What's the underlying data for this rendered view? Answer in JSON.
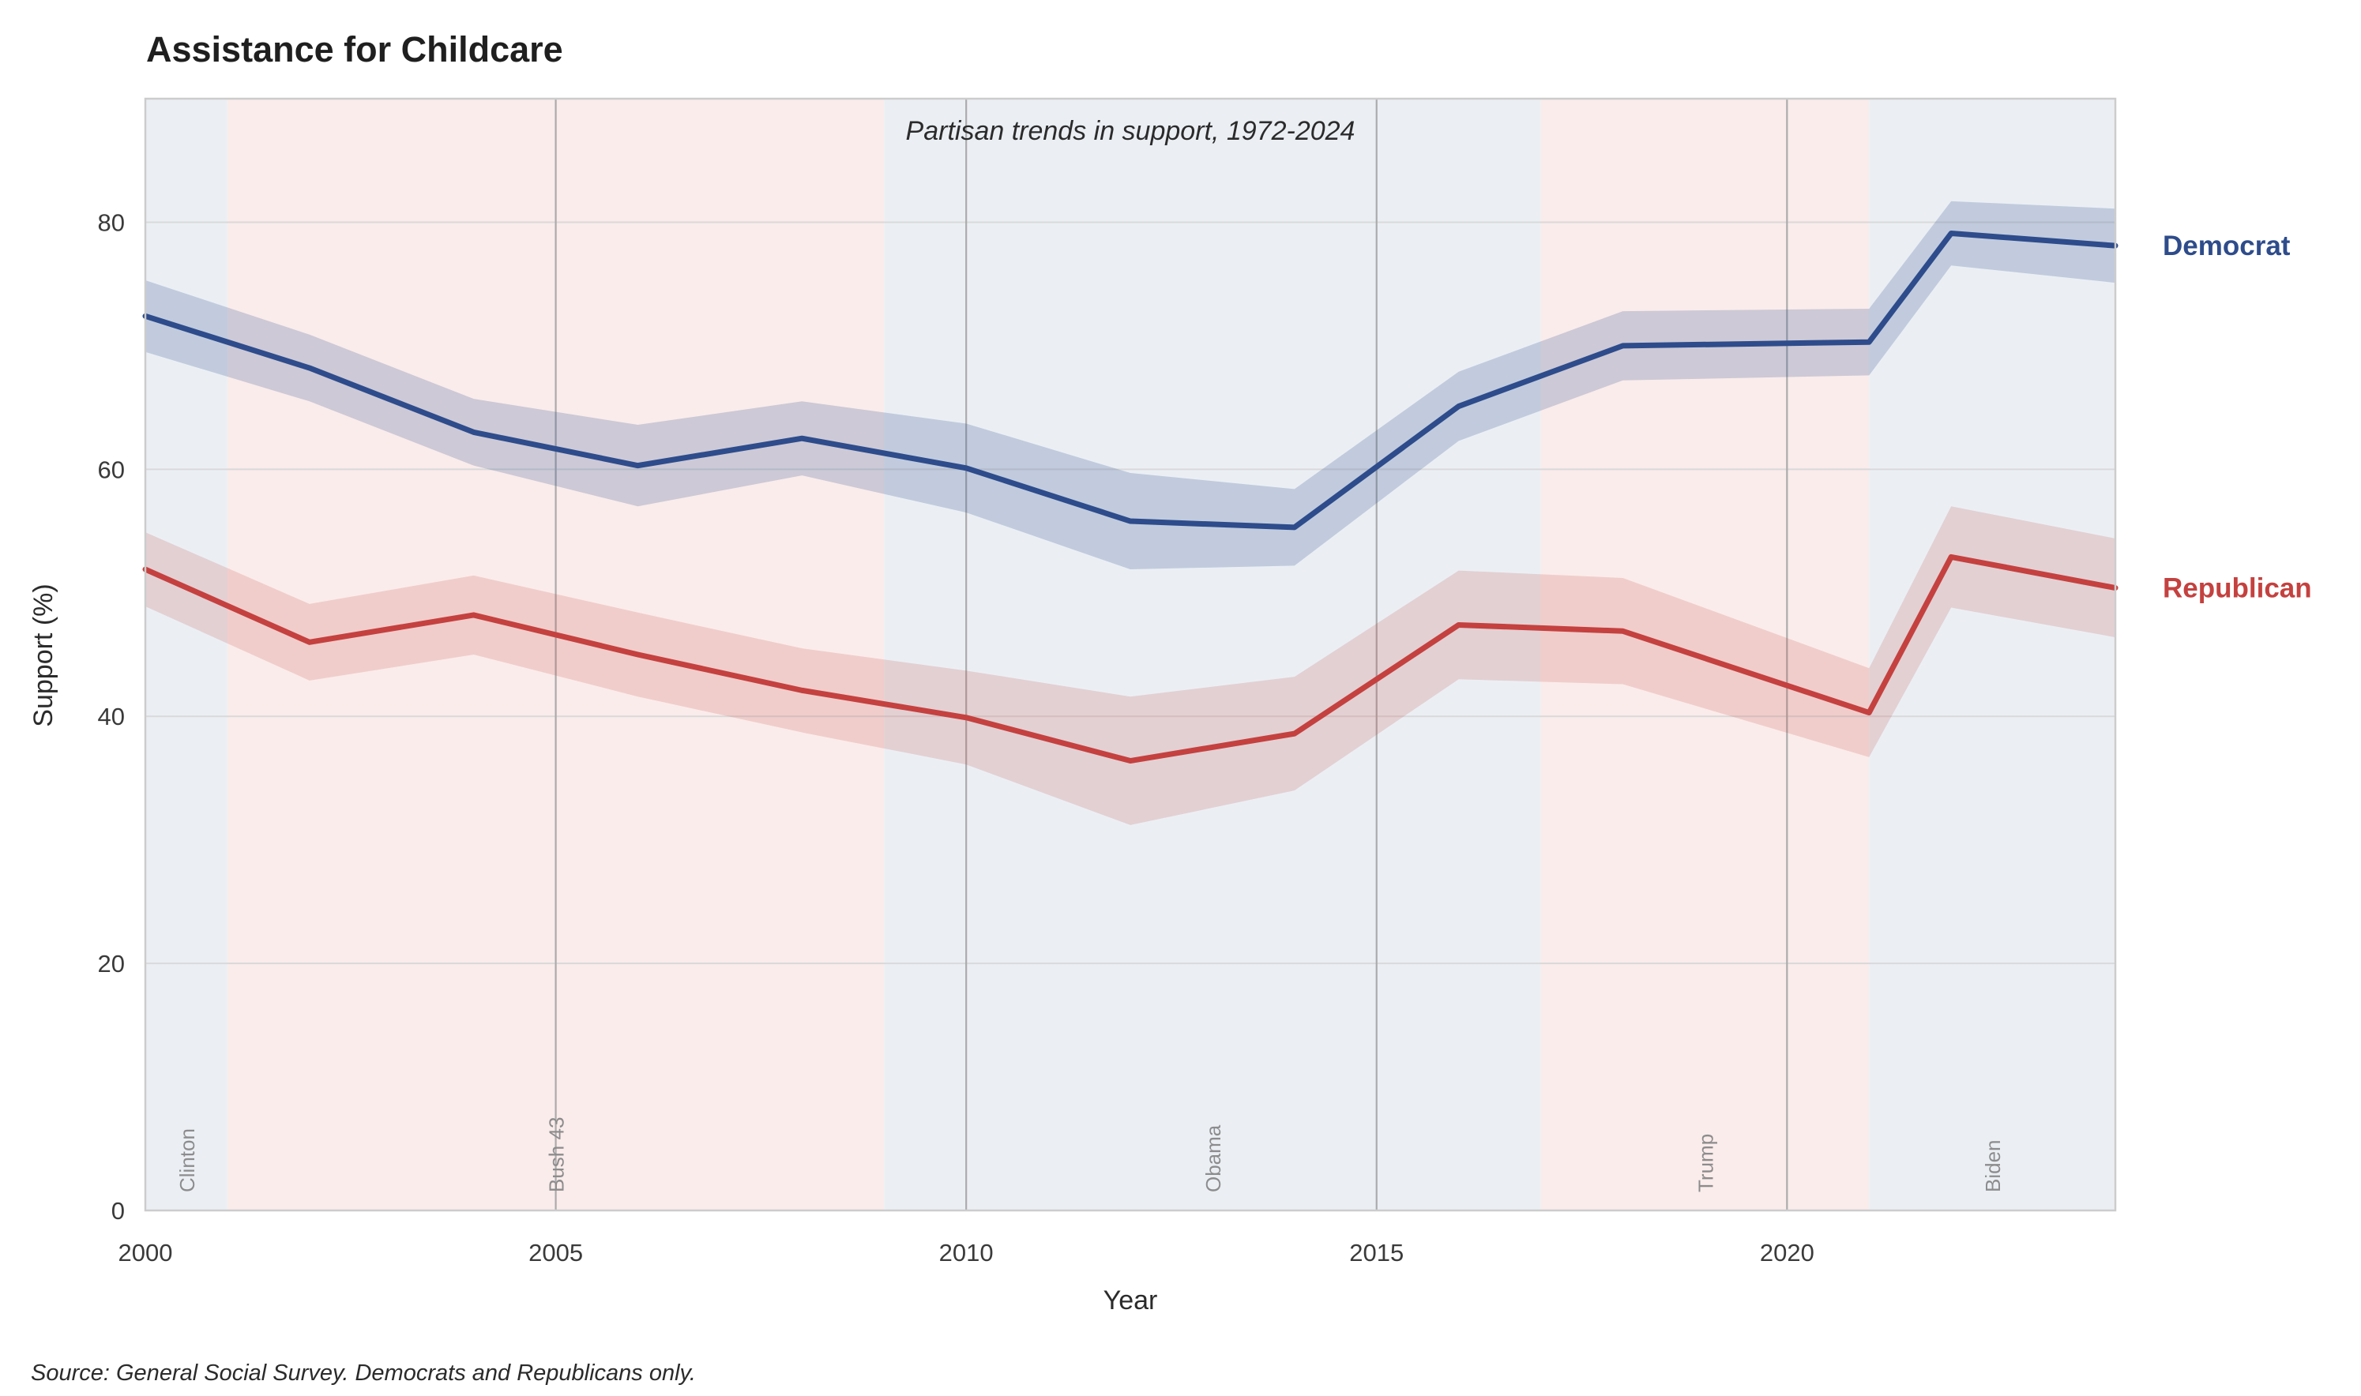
{
  "title": "Assistance for Childcare",
  "subtitle": "Partisan trends in support, 1972-2024",
  "source_note": "Source: General Social Survey. Democrats and Republicans only.",
  "axes": {
    "x_label": "Year",
    "y_label": "Support (%)",
    "x_ticks": [
      2000,
      2005,
      2010,
      2015,
      2020
    ],
    "y_ticks": [
      0,
      20,
      40,
      60,
      80
    ],
    "x_range": [
      2000,
      2024
    ],
    "y_range": [
      0,
      90
    ]
  },
  "eras": [
    {
      "label": "Clinton",
      "party": "Democrat",
      "start": 2000,
      "end": 2001
    },
    {
      "label": "Bush 43",
      "party": "Republican",
      "start": 2001,
      "end": 2009
    },
    {
      "label": "Obama",
      "party": "Democrat",
      "start": 2009,
      "end": 2017
    },
    {
      "label": "Trump",
      "party": "Republican",
      "start": 2017,
      "end": 2021
    },
    {
      "label": "Biden",
      "party": "Democrat",
      "start": 2021,
      "end": 2024
    }
  ],
  "chart_data": {
    "type": "line",
    "title": "Assistance for Childcare",
    "subtitle": "Partisan trends in support, 1972-2024",
    "xlabel": "Year",
    "ylabel": "Support (%)",
    "xlim": [
      2000,
      2024
    ],
    "ylim": [
      0,
      90
    ],
    "grid": true,
    "legend_position": "right-of-plot",
    "x": [
      2000,
      2002,
      2004,
      2006,
      2008,
      2010,
      2012,
      2014,
      2016,
      2018,
      2021,
      2022,
      2024
    ],
    "series": [
      {
        "name": "Democrat",
        "color": "#2e4c8b",
        "values": [
          72.4,
          68.2,
          63.0,
          60.3,
          62.5,
          60.1,
          55.8,
          55.3,
          65.1,
          70.0,
          70.3,
          79.1,
          78.1
        ],
        "ci_halfwidth": [
          2.9,
          2.7,
          2.7,
          3.3,
          3.0,
          3.6,
          3.9,
          3.1,
          2.8,
          2.8,
          2.7,
          2.6,
          3.0
        ]
      },
      {
        "name": "Republican",
        "color": "#c4413f",
        "values": [
          51.9,
          46.0,
          48.2,
          45.0,
          42.1,
          39.9,
          36.4,
          38.6,
          47.4,
          46.9,
          40.3,
          52.9,
          50.4
        ],
        "ci_halfwidth": [
          3.0,
          3.1,
          3.2,
          3.4,
          3.4,
          3.8,
          5.2,
          4.6,
          4.4,
          4.3,
          3.6,
          4.1,
          4.0
        ]
      }
    ]
  },
  "colors": {
    "democrat_line": "#2e4c8b",
    "republican_line": "#c4413f",
    "democrat_band": "rgba(46, 76, 139, 0.22)",
    "republican_band": "rgba(196, 65, 63, 0.18)",
    "era_democrat": "#ebeff4",
    "era_republican": "#faeceb",
    "grid_horizontal": "#d9d9d9",
    "grid_vertical": "#ababab",
    "plot_border": "#cccccc",
    "era_label_text": "#8c8c8c"
  }
}
